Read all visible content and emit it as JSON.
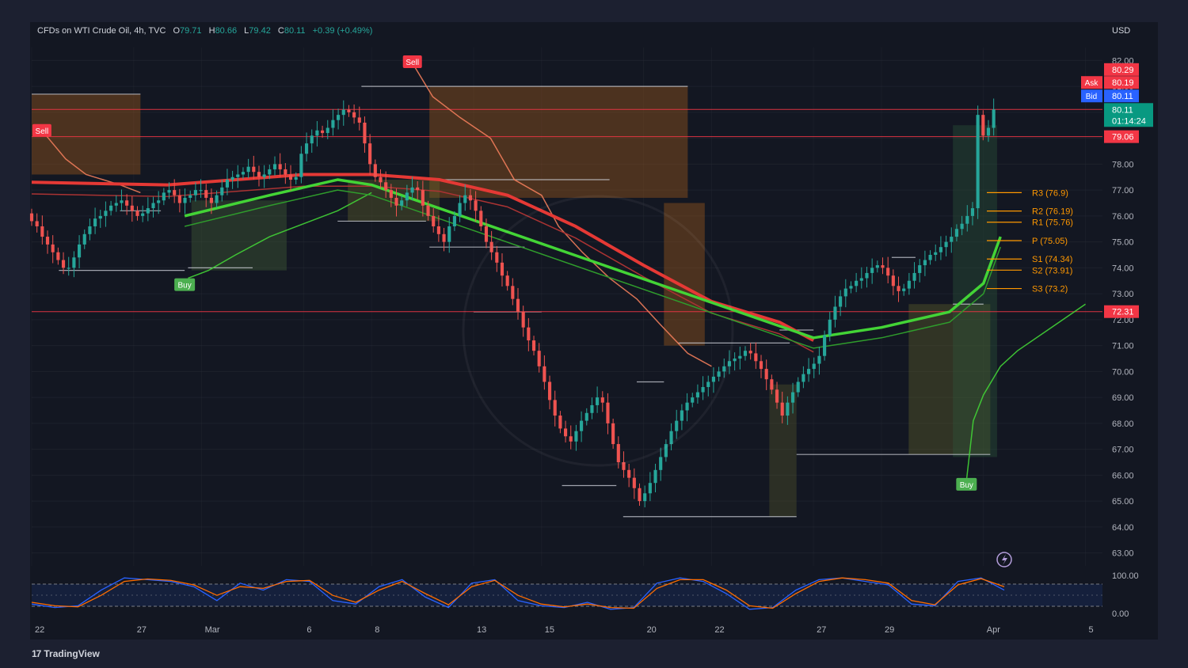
{
  "header": {
    "symbol": "CFDs on WTI Crude Oil, 4h, TVC",
    "open_label": "O",
    "open": "79.71",
    "high_label": "H",
    "high": "80.66",
    "low_label": "L",
    "low": "79.42",
    "close_label": "C",
    "close": "80.11",
    "change": "+0.39 (+0.49%)",
    "currency": "USD"
  },
  "footer": {
    "brand": "TradingView",
    "logo": "17"
  },
  "price_tags": {
    "high_price": "80.29",
    "ask_label": "Ask",
    "ask": "80.19",
    "bid_label": "Bid",
    "bid": "80.11",
    "last": "80.11",
    "countdown": "01:14:24",
    "level_mid": "79.06",
    "level_low": "72.31"
  },
  "signals": [
    {
      "text": "Sell",
      "x": 0.3,
      "y": 79.3
    },
    {
      "text": "Sell",
      "x": 11.2,
      "y": 81.95
    },
    {
      "text": "Buy",
      "x": 4.5,
      "y": 73.35
    },
    {
      "text": "Buy",
      "x": 27.5,
      "y": 65.65
    }
  ],
  "pivots": [
    {
      "label": "R3 (76.9)",
      "value": 76.9
    },
    {
      "label": "R2 (76.19)",
      "value": 76.19
    },
    {
      "label": "R1 (75.76)",
      "value": 75.76
    },
    {
      "label": "P (75.05)",
      "value": 75.05
    },
    {
      "label": "S1 (74.34)",
      "value": 74.34
    },
    {
      "label": "S2 (73.91)",
      "value": 73.91
    },
    {
      "label": "S3 (73.2)",
      "value": 73.2
    }
  ],
  "colors": {
    "up": "#26a69a",
    "down": "#ef5350",
    "background": "#131722",
    "grid": "#2a2e39",
    "text": "#b2b5be",
    "level_line": "#f23645",
    "ema_red": "#e53935",
    "ema_green": "#43d436",
    "pivot": "#ff9800",
    "stoch_k": "#2962ff",
    "stoch_d": "#ff6d00"
  },
  "chart_data": {
    "type": "candlestick",
    "title": "CFDs on WTI Crude Oil, 4h, TVC",
    "ylabel": "USD",
    "ylim": [
      62.5,
      82.5
    ],
    "y_ticks": [
      63,
      64,
      65,
      66,
      67,
      68,
      69,
      70,
      71,
      72,
      73,
      74,
      75,
      76,
      77,
      78,
      79,
      80,
      81,
      82
    ],
    "y_tick_labels": [
      "63.00",
      "64.00",
      "65.00",
      "66.00",
      "67.00",
      "68.00",
      "69.00",
      "70.00",
      "71.00",
      "72.00",
      "73.00",
      "74.00",
      "75.00",
      "76.00",
      "77.00",
      "78.00",
      "79.00",
      "80.00",
      "81.00",
      "82.00"
    ],
    "x_ticks": [
      {
        "label": "22",
        "x": 0
      },
      {
        "label": "27",
        "x": 3
      },
      {
        "label": "Mar",
        "x": 5
      },
      {
        "label": "6",
        "x": 8
      },
      {
        "label": "8",
        "x": 10
      },
      {
        "label": "13",
        "x": 13
      },
      {
        "label": "15",
        "x": 15
      },
      {
        "label": "20",
        "x": 18
      },
      {
        "label": "22",
        "x": 20
      },
      {
        "label": "27",
        "x": 23
      },
      {
        "label": "29",
        "x": 25
      },
      {
        "label": "Apr",
        "x": 28
      },
      {
        "label": "5",
        "x": 31
      }
    ],
    "closes": [
      75.8,
      75.6,
      75.2,
      74.9,
      74.6,
      74.3,
      74.0,
      74.0,
      74.4,
      74.9,
      75.3,
      75.6,
      75.9,
      76.0,
      76.2,
      76.4,
      76.5,
      76.6,
      76.4,
      76.2,
      76.0,
      76.1,
      76.3,
      76.5,
      76.6,
      76.9,
      77.0,
      76.8,
      76.5,
      76.7,
      76.8,
      77.0,
      77.0,
      76.7,
      76.5,
      76.8,
      77.1,
      77.4,
      77.5,
      77.6,
      77.7,
      77.9,
      77.7,
      77.5,
      77.6,
      77.8,
      78.0,
      77.8,
      77.6,
      77.4,
      77.5,
      78.4,
      78.8,
      79.1,
      79.3,
      79.2,
      79.4,
      79.7,
      79.9,
      80.1,
      80.0,
      79.8,
      79.6,
      78.8,
      78.0,
      77.5,
      77.3,
      77.0,
      76.7,
      76.4,
      76.6,
      76.9,
      77.1,
      77.0,
      76.4,
      76.0,
      75.6,
      75.3,
      75.0,
      75.6,
      76.0,
      76.5,
      76.8,
      76.6,
      76.2,
      75.6,
      75.0,
      74.6,
      74.2,
      73.7,
      73.3,
      72.8,
      72.3,
      71.7,
      71.2,
      70.8,
      70.2,
      69.6,
      68.9,
      68.3,
      67.8,
      67.5,
      67.3,
      67.7,
      68.1,
      68.4,
      68.7,
      69.0,
      68.8,
      68.0,
      67.2,
      66.5,
      66.2,
      65.9,
      65.5,
      65.0,
      65.3,
      65.7,
      66.2,
      66.7,
      67.2,
      67.7,
      68.1,
      68.5,
      68.8,
      69.0,
      69.2,
      69.4,
      69.6,
      69.8,
      70.0,
      70.2,
      70.4,
      70.5,
      70.6,
      70.8,
      70.7,
      70.4,
      70.1,
      69.7,
      69.3,
      68.8,
      68.3,
      68.8,
      69.2,
      69.6,
      69.9,
      70.1,
      70.3,
      70.6,
      71.4,
      72.0,
      72.5,
      72.9,
      73.2,
      73.3,
      73.5,
      73.6,
      73.8,
      74.0,
      74.1,
      74.0,
      73.7,
      73.3,
      73.1,
      73.2,
      73.5,
      73.8,
      74.1,
      74.3,
      74.5,
      74.6,
      74.8,
      75.0,
      75.2,
      75.5,
      75.7,
      76.0,
      76.3,
      79.9,
      79.1,
      79.4,
      80.11
    ],
    "candle_x_range": [
      0,
      28.3
    ],
    "ema_red": [
      [
        0,
        77.3
      ],
      [
        4,
        77.2
      ],
      [
        8,
        77.6
      ],
      [
        10,
        77.6
      ],
      [
        12,
        77.4
      ],
      [
        14,
        76.8
      ],
      [
        16,
        75.6
      ],
      [
        18,
        74.1
      ],
      [
        20,
        72.7
      ],
      [
        22,
        71.9
      ],
      [
        23,
        71.2
      ]
    ],
    "ema_green": [
      [
        4.5,
        76.0
      ],
      [
        7,
        76.8
      ],
      [
        9,
        77.4
      ],
      [
        10,
        77.2
      ],
      [
        23,
        71.3
      ],
      [
        25,
        71.7
      ],
      [
        27,
        72.3
      ],
      [
        28,
        73.4
      ],
      [
        28.5,
        75.2
      ]
    ],
    "stochastic": {
      "ylim": [
        0,
        100
      ],
      "tick_labels": [
        "100.00",
        "0.00"
      ],
      "k": [
        20,
        10,
        15,
        60,
        95,
        90,
        85,
        70,
        30,
        80,
        60,
        90,
        85,
        30,
        20,
        70,
        90,
        40,
        10,
        80,
        90,
        30,
        15,
        10,
        25,
        5,
        10,
        80,
        95,
        85,
        50,
        5,
        10,
        60,
        90,
        95,
        85,
        75,
        20,
        15,
        85,
        95,
        60
      ],
      "d": [
        25,
        15,
        12,
        45,
        85,
        92,
        88,
        75,
        45,
        70,
        65,
        85,
        88,
        45,
        25,
        60,
        85,
        50,
        18,
        70,
        88,
        45,
        20,
        12,
        20,
        10,
        8,
        65,
        90,
        90,
        60,
        15,
        8,
        50,
        85,
        95,
        90,
        80,
        30,
        18,
        75,
        93,
        70
      ]
    }
  }
}
